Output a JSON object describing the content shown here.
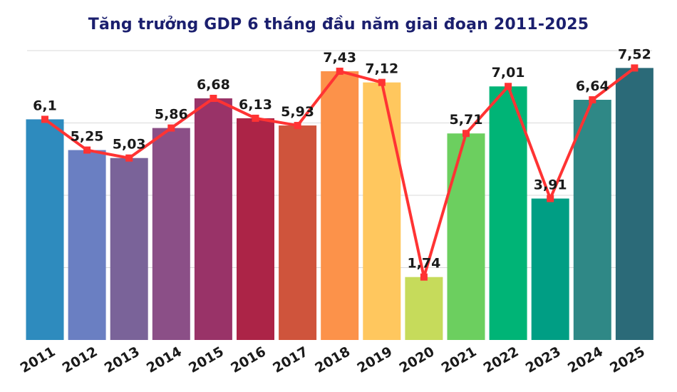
{
  "chart_data": {
    "type": "bar",
    "title": "Tăng trưởng GDP 6 tháng đầu năm giai đoạn 2011-2025",
    "xlabel": "",
    "ylabel": "",
    "ylim": [
      0,
      8
    ],
    "grid": true,
    "categories": [
      "2011",
      "2012",
      "2013",
      "2014",
      "2015",
      "2016",
      "2017",
      "2018",
      "2019",
      "2020",
      "2021",
      "2022",
      "2023",
      "2024",
      "2025"
    ],
    "value_labels": [
      "6,1",
      "5,25",
      "5,03",
      "5,86",
      "6,68",
      "6,13",
      "5,93",
      "7,43",
      "7,12",
      "1,74",
      "5,71",
      "7,01",
      "3,91",
      "6,64",
      "7,52"
    ],
    "series": [
      {
        "type": "bar",
        "values": [
          6.1,
          5.25,
          5.03,
          5.86,
          6.68,
          6.13,
          5.93,
          7.43,
          7.12,
          1.74,
          5.71,
          7.01,
          3.91,
          6.64,
          7.52
        ]
      },
      {
        "type": "line",
        "values": [
          6.1,
          5.25,
          5.03,
          5.86,
          6.68,
          6.13,
          5.93,
          7.43,
          7.12,
          1.74,
          5.71,
          7.01,
          3.91,
          6.64,
          7.52
        ]
      }
    ],
    "colors": {
      "bars": [
        "#2e8bbe",
        "#6a7fc2",
        "#7a6399",
        "#8b4f87",
        "#993368",
        "#ac2447",
        "#cf543c",
        "#fc924a",
        "#ffc75e",
        "#c6db5b",
        "#6ccf5f",
        "#00b476",
        "#009e84",
        "#2f8886",
        "#2b6a78"
      ],
      "line": "#ff3333",
      "marker": "#ff3333",
      "grid": "#d9d9d9",
      "title": "#1b1f6e"
    }
  }
}
